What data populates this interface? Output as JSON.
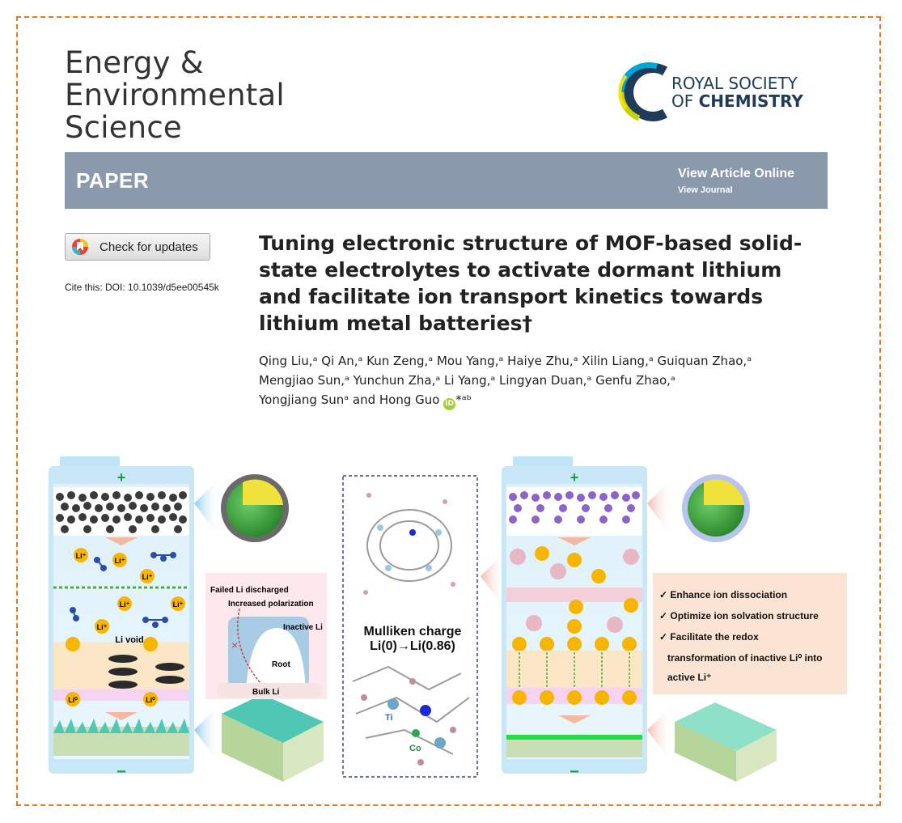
{
  "journal": {
    "line1": "Energy &",
    "line2": "Environmental",
    "line3": "Science"
  },
  "publisher": {
    "line1": "ROYAL SOCIETY",
    "line2_prefix": "OF ",
    "line2_bold": "CHEMISTRY"
  },
  "banner": {
    "type": "PAPER",
    "view_article": "View Article Online",
    "view_journal": "View Journal"
  },
  "updates_button": "Check for updates",
  "cite": {
    "label": "Cite this: ",
    "doi": "DOI: 10.1039/d5ee00545k"
  },
  "title": "Tuning electronic structure of MOF-based solid-state electrolytes to activate dormant lithium and facilitate ion transport kinetics towards lithium metal batteries†",
  "authors": {
    "line1": "Qing Liu,ᵃ Qi An,ᵃ Kun Zeng,ᵃ Mou Yang,ᵃ Haiye Zhu,ᵃ Xilin Liang,ᵃ Guiquan Zhao,ᵃ",
    "line2": "Mengjiao Sun,ᵃ Yunchun Zha,ᵃ Li Yang,ᵃ Lingyan Duan,ᵃ Genfu Zhao,ᵃ",
    "line3a": "Yongjiang Sunᵃ and Hong Guo ",
    "orcid": "iD",
    "line3b": "*ᵃᵇ"
  },
  "figure": {
    "plus": "+",
    "minus": "−",
    "li_plus": "Li⁺",
    "li_zero": "Li⁰",
    "li_void": "Li void",
    "failed": "Failed Li discharged",
    "polarization": "Increased polarization",
    "inactive": "Inactive Li",
    "root": "Root",
    "bulk": "Bulk Li",
    "mulliken1": "Mulliken charge",
    "mulliken2": "Li(0)→Li(0.86)",
    "ti": "Ti",
    "co": "Co",
    "benefit1": "✓ Enhance ion dissociation",
    "benefit2": "✓ Optimize ion solvation structure",
    "benefit3": "✓  Facilitate the redox",
    "benefit4": "transformation of inactive Li⁰ into",
    "benefit5": "active Li⁺"
  }
}
